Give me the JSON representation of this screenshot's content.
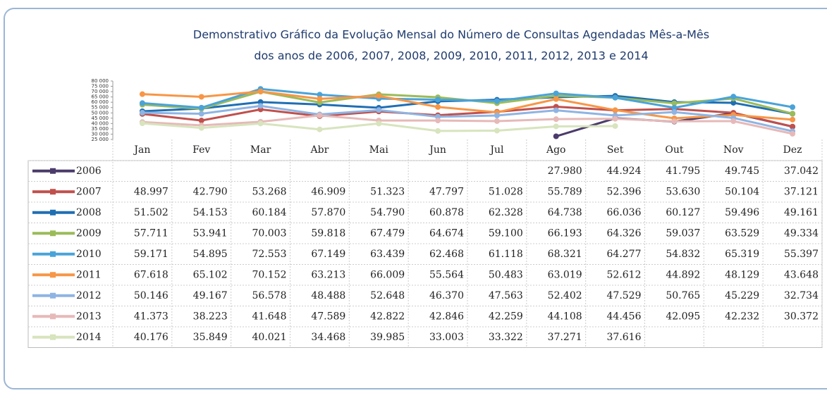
{
  "chart_data": {
    "type": "line",
    "title": "Demonstrativo Gráfico da Evolução Mensal do Número de Consultas Agendadas Mês-a-Mês",
    "subtitle": "dos anos de 2006, 2007, 2008, 2009, 2010, 2011, 2012, 2013 e 2014",
    "categories": [
      "Jan",
      "Fev",
      "Mar",
      "Abr",
      "Mai",
      "Jun",
      "Jul",
      "Ago",
      "Set",
      "Out",
      "Nov",
      "Dez"
    ],
    "ylim": [
      25000,
      80000
    ],
    "yticks": [
      {
        "value": 25000,
        "label": "25 000"
      },
      {
        "value": 30000,
        "label": "30 000"
      },
      {
        "value": 35000,
        "label": "35 000"
      },
      {
        "value": 40000,
        "label": "40 000"
      },
      {
        "value": 45000,
        "label": "45 000"
      },
      {
        "value": 50000,
        "label": "50 000"
      },
      {
        "value": 55000,
        "label": "55 000"
      },
      {
        "value": 60000,
        "label": "60 000"
      },
      {
        "value": 65000,
        "label": "65 000"
      },
      {
        "value": 70000,
        "label": "70 000"
      },
      {
        "value": 75000,
        "label": "75 000"
      },
      {
        "value": 80000,
        "label": "80 000"
      }
    ],
    "grid": false,
    "series": [
      {
        "name": "2006",
        "color": "#4b3b6b",
        "values": [
          null,
          null,
          null,
          null,
          null,
          null,
          null,
          27980,
          44924,
          41795,
          49745,
          37042
        ],
        "value_labels": [
          null,
          null,
          null,
          null,
          null,
          null,
          null,
          "27.980",
          "44.924",
          "41.795",
          "49.745",
          "37.042"
        ]
      },
      {
        "name": "2007",
        "color": "#c0504d",
        "values": [
          48997,
          42790,
          53268,
          46909,
          51323,
          47797,
          51028,
          55789,
          52396,
          53630,
          50104,
          37121
        ],
        "value_labels": [
          "48.997",
          "42.790",
          "53.268",
          "46.909",
          "51.323",
          "47.797",
          "51.028",
          "55.789",
          "52.396",
          "53.630",
          "50.104",
          "37.121"
        ]
      },
      {
        "name": "2008",
        "color": "#1f6fb4",
        "values": [
          51502,
          54153,
          60184,
          57870,
          54790,
          60878,
          62328,
          64738,
          66036,
          60127,
          59496,
          49161
        ],
        "value_labels": [
          "51.502",
          "54.153",
          "60.184",
          "57.870",
          "54.790",
          "60.878",
          "62.328",
          "64.738",
          "66.036",
          "60.127",
          "59.496",
          "49.161"
        ]
      },
      {
        "name": "2009",
        "color": "#9bbb59",
        "values": [
          57711,
          53941,
          70003,
          59818,
          67479,
          64674,
          59100,
          66193,
          64326,
          59037,
          63529,
          49334
        ],
        "value_labels": [
          "57.711",
          "53.941",
          "70.003",
          "59.818",
          "67.479",
          "64.674",
          "59.100",
          "66.193",
          "64.326",
          "59.037",
          "63.529",
          "49.334"
        ]
      },
      {
        "name": "2010",
        "color": "#4aa3d8",
        "values": [
          59171,
          54895,
          72553,
          67149,
          63439,
          62468,
          61118,
          68321,
          64277,
          54832,
          65319,
          55397
        ],
        "value_labels": [
          "59.171",
          "54.895",
          "72.553",
          "67.149",
          "63.439",
          "62.468",
          "61.118",
          "68.321",
          "64.277",
          "54.832",
          "65.319",
          "55.397"
        ]
      },
      {
        "name": "2011",
        "color": "#f79646",
        "values": [
          67618,
          65102,
          70152,
          63213,
          66009,
          55564,
          50483,
          63019,
          52612,
          44892,
          48129,
          43648
        ],
        "value_labels": [
          "67.618",
          "65.102",
          "70.152",
          "63.213",
          "66.009",
          "55.564",
          "50.483",
          "63.019",
          "52.612",
          "44.892",
          "48.129",
          "43.648"
        ]
      },
      {
        "name": "2012",
        "color": "#8eb4e3",
        "values": [
          50146,
          49167,
          56578,
          48488,
          52648,
          46370,
          47563,
          52402,
          47529,
          50765,
          45229,
          32734
        ],
        "value_labels": [
          "50.146",
          "49.167",
          "56.578",
          "48.488",
          "52.648",
          "46.370",
          "47.563",
          "52.402",
          "47.529",
          "50.765",
          "45.229",
          "32.734"
        ]
      },
      {
        "name": "2013",
        "color": "#e6b9b8",
        "values": [
          41373,
          38223,
          41648,
          47589,
          42822,
          42846,
          42259,
          44108,
          44456,
          42095,
          42232,
          30372
        ],
        "value_labels": [
          "41.373",
          "38.223",
          "41.648",
          "47.589",
          "42.822",
          "42.846",
          "42.259",
          "44.108",
          "44.456",
          "42.095",
          "42.232",
          "30.372"
        ]
      },
      {
        "name": "2014",
        "color": "#d7e4bd",
        "values": [
          40176,
          35849,
          40021,
          34468,
          39985,
          33003,
          33322,
          37271,
          37616,
          null,
          null,
          null
        ],
        "value_labels": [
          "40.176",
          "35.849",
          "40.021",
          "34.468",
          "39.985",
          "33.003",
          "33.322",
          "37.271",
          "37.616",
          null,
          null,
          null
        ]
      }
    ]
  }
}
